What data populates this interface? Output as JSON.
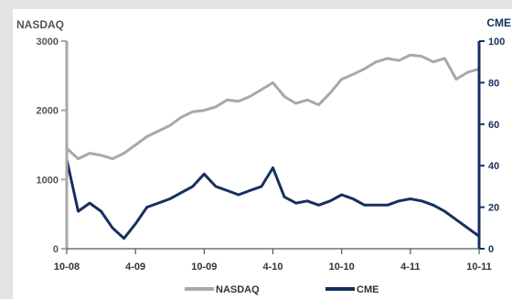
{
  "chart_data": {
    "type": "line",
    "title": "",
    "xlabel": "",
    "legend_position": "bottom",
    "grid": false,
    "x_ticks": [
      "10-08",
      "4-09",
      "10-09",
      "4-10",
      "10-10",
      "4-11",
      "10-11"
    ],
    "x_range": [
      "10-08",
      "10-11"
    ],
    "y_left": {
      "label": "NASDAQ",
      "ticks": [
        "0",
        "1000",
        "2000",
        "3000"
      ],
      "range": [
        0,
        3000
      ]
    },
    "y_right": {
      "label": "CME",
      "ticks": [
        "0",
        "20",
        "40",
        "60",
        "80",
        "100"
      ],
      "range": [
        0,
        100
      ]
    },
    "series": [
      {
        "name": "NASDAQ",
        "axis": "left",
        "color": "#a8a8a8",
        "points": [
          [
            "10-08",
            1450
          ],
          [
            "11-08",
            1300
          ],
          [
            "12-08",
            1380
          ],
          [
            "1-09",
            1350
          ],
          [
            "2-09",
            1300
          ],
          [
            "3-09",
            1380
          ],
          [
            "4-09",
            1500
          ],
          [
            "5-09",
            1620
          ],
          [
            "6-09",
            1700
          ],
          [
            "7-09",
            1780
          ],
          [
            "8-09",
            1900
          ],
          [
            "9-09",
            1980
          ],
          [
            "10-09",
            2000
          ],
          [
            "11-09",
            2050
          ],
          [
            "12-09",
            2150
          ],
          [
            "1-10",
            2130
          ],
          [
            "2-10",
            2200
          ],
          [
            "3-10",
            2300
          ],
          [
            "4-10",
            2400
          ],
          [
            "5-10",
            2200
          ],
          [
            "6-10",
            2100
          ],
          [
            "7-10",
            2150
          ],
          [
            "8-10",
            2080
          ],
          [
            "9-10",
            2250
          ],
          [
            "10-10",
            2450
          ],
          [
            "11-10",
            2520
          ],
          [
            "12-10",
            2600
          ],
          [
            "1-11",
            2700
          ],
          [
            "2-11",
            2750
          ],
          [
            "3-11",
            2720
          ],
          [
            "4-11",
            2800
          ],
          [
            "5-11",
            2780
          ],
          [
            "6-11",
            2700
          ],
          [
            "7-11",
            2750
          ],
          [
            "8-11",
            2450
          ],
          [
            "9-11",
            2550
          ],
          [
            "10-11",
            2600
          ]
        ]
      },
      {
        "name": "CME",
        "axis": "right",
        "color": "#16305e",
        "points": [
          [
            "10-08",
            43
          ],
          [
            "11-08",
            18
          ],
          [
            "12-08",
            22
          ],
          [
            "1-09",
            18
          ],
          [
            "2-09",
            10
          ],
          [
            "3-09",
            5
          ],
          [
            "4-09",
            12
          ],
          [
            "5-09",
            20
          ],
          [
            "6-09",
            22
          ],
          [
            "7-09",
            24
          ],
          [
            "8-09",
            27
          ],
          [
            "9-09",
            30
          ],
          [
            "10-09",
            36
          ],
          [
            "11-09",
            30
          ],
          [
            "12-09",
            28
          ],
          [
            "1-10",
            26
          ],
          [
            "2-10",
            28
          ],
          [
            "3-10",
            30
          ],
          [
            "4-10",
            39
          ],
          [
            "5-10",
            25
          ],
          [
            "6-10",
            22
          ],
          [
            "7-10",
            23
          ],
          [
            "8-10",
            21
          ],
          [
            "9-10",
            23
          ],
          [
            "10-10",
            26
          ],
          [
            "11-10",
            24
          ],
          [
            "12-10",
            21
          ],
          [
            "1-11",
            21
          ],
          [
            "2-11",
            21
          ],
          [
            "3-11",
            23
          ],
          [
            "4-11",
            24
          ],
          [
            "5-11",
            23
          ],
          [
            "6-11",
            21
          ],
          [
            "7-11",
            18
          ],
          [
            "8-11",
            14
          ],
          [
            "9-11",
            10
          ],
          [
            "10-11",
            6
          ]
        ]
      }
    ]
  }
}
